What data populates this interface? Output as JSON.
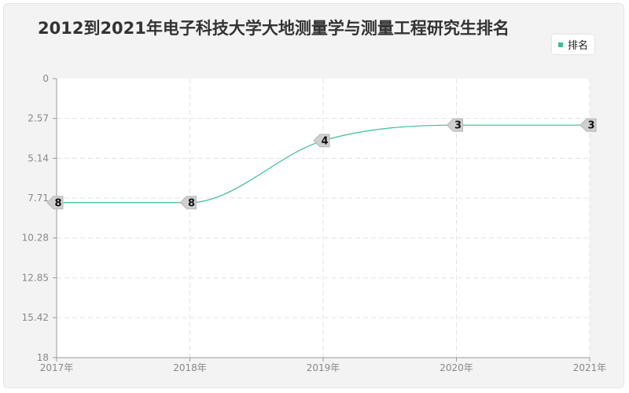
{
  "chart_data": {
    "type": "line",
    "title": "2012到2021年电子科技大学大地测量学与测量工程研究生排名",
    "x": [
      "2017年",
      "2018年",
      "2019年",
      "2020年",
      "2021年"
    ],
    "series": [
      {
        "name": "排名",
        "values": [
          8,
          8,
          4,
          3,
          3
        ],
        "color": "#3bbf96"
      }
    ],
    "y_ticks": [
      "0",
      "2.57",
      "5.14",
      "7.71",
      "10.28",
      "12.85",
      "15.42",
      "18"
    ],
    "ylim": [
      0,
      18
    ],
    "y_inverted": true,
    "grid": true,
    "legend_position": "top-right"
  }
}
